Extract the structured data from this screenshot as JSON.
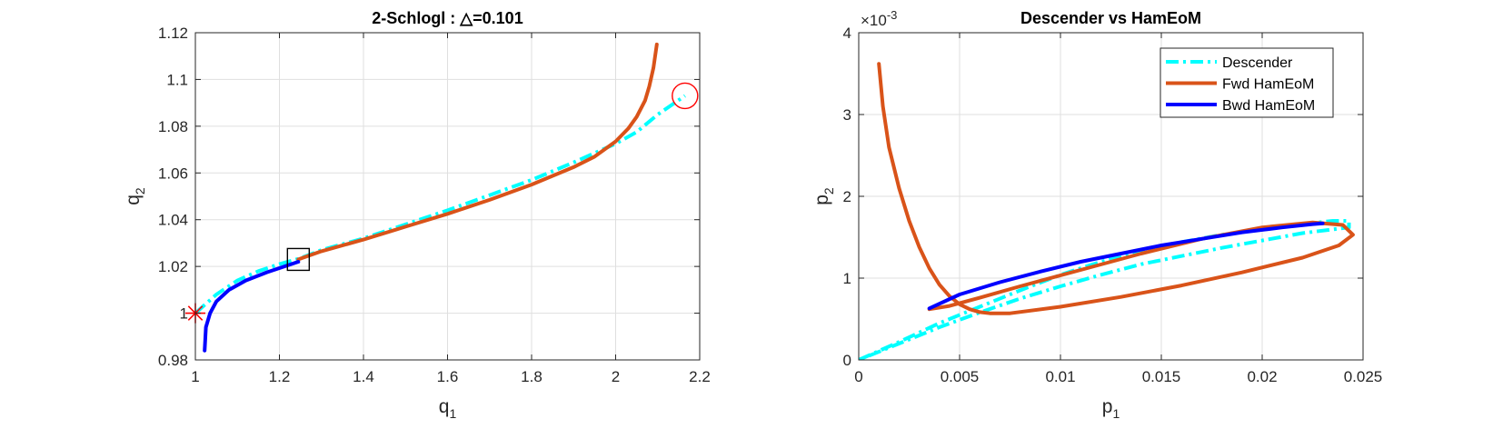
{
  "chart_data": [
    {
      "type": "line",
      "title": "2-Schlogl : △=0.101",
      "xlabel": "q",
      "xlabel_sub": "1",
      "ylabel": "q",
      "ylabel_sub": "2",
      "xlim": [
        1,
        2.2
      ],
      "ylim": [
        0.98,
        1.12
      ],
      "xticks": [
        1,
        1.2,
        1.4,
        1.6,
        1.8,
        2,
        2.2
      ],
      "xtick_labels": [
        "1",
        "1.2",
        "1.4",
        "1.6",
        "1.8",
        "2",
        "2.2"
      ],
      "yticks": [
        0.98,
        1,
        1.02,
        1.04,
        1.06,
        1.08,
        1.1,
        1.12
      ],
      "ytick_labels": [
        "0.98",
        "1",
        "1.02",
        "1.04",
        "1.06",
        "1.08",
        "1.1",
        "1.12"
      ],
      "grid": true,
      "series": [
        {
          "color": "#00FFFF",
          "style": "dashdot",
          "points": [
            [
              1.0,
              1.0
            ],
            [
              1.05,
              1.008
            ],
            [
              1.1,
              1.014
            ],
            [
              1.15,
              1.018
            ],
            [
              1.2,
              1.021
            ],
            [
              1.25,
              1.0235
            ],
            [
              1.3,
              1.027
            ],
            [
              1.4,
              1.032
            ],
            [
              1.5,
              1.038
            ],
            [
              1.6,
              1.044
            ],
            [
              1.7,
              1.0505
            ],
            [
              1.8,
              1.057
            ],
            [
              1.9,
              1.0645
            ],
            [
              2.0,
              1.0725
            ],
            [
              2.05,
              1.0775
            ],
            [
              2.1,
              1.085
            ],
            [
              2.165,
              1.093
            ]
          ]
        },
        {
          "color": "#D95319",
          "style": "solid",
          "points": [
            [
              1.245,
              1.023
            ],
            [
              1.3,
              1.0265
            ],
            [
              1.4,
              1.0315
            ],
            [
              1.5,
              1.037
            ],
            [
              1.6,
              1.0425
            ],
            [
              1.7,
              1.0485
            ],
            [
              1.8,
              1.055
            ],
            [
              1.9,
              1.0625
            ],
            [
              1.95,
              1.067
            ],
            [
              2.0,
              1.0735
            ],
            [
              2.03,
              1.079
            ],
            [
              2.05,
              1.084
            ],
            [
              2.07,
              1.091
            ],
            [
              2.08,
              1.097
            ],
            [
              2.09,
              1.105
            ],
            [
              2.098,
              1.115
            ]
          ]
        },
        {
          "color": "#0000FF",
          "style": "solid",
          "points": [
            [
              1.022,
              0.984
            ],
            [
              1.025,
              0.994
            ],
            [
              1.035,
              1.0
            ],
            [
              1.05,
              1.005
            ],
            [
              1.08,
              1.01
            ],
            [
              1.12,
              1.014
            ],
            [
              1.17,
              1.0175
            ],
            [
              1.22,
              1.0205
            ],
            [
              1.245,
              1.022
            ]
          ]
        }
      ],
      "markers": [
        {
          "shape": "asterisk",
          "color": "#FF0000",
          "x": 1.0,
          "y": 1.0
        },
        {
          "shape": "square",
          "color": "#000000",
          "x": 1.245,
          "y": 1.023
        },
        {
          "shape": "circle",
          "color": "#FF0000",
          "x": 2.165,
          "y": 1.093
        }
      ]
    },
    {
      "type": "line",
      "title": "Descender vs HamEoM",
      "xlabel": "p",
      "xlabel_sub": "1",
      "ylabel": "p",
      "ylabel_sub": "2",
      "y_exponent_base": "×10",
      "y_exponent": "-3",
      "xlim": [
        0,
        0.025
      ],
      "ylim": [
        0,
        4
      ],
      "xticks": [
        0,
        0.005,
        0.01,
        0.015,
        0.02,
        0.025
      ],
      "xtick_labels": [
        "0",
        "0.005",
        "0.01",
        "0.015",
        "0.02",
        "0.025"
      ],
      "yticks": [
        0,
        1,
        2,
        3,
        4
      ],
      "ytick_labels": [
        "0",
        "1",
        "2",
        "3",
        "4"
      ],
      "grid": true,
      "legend_position": "top-right",
      "legend": [
        {
          "label": "Descender",
          "color": "#00FFFF",
          "style": "dashdot"
        },
        {
          "label": "Fwd HamEoM",
          "color": "#D95319",
          "style": "solid"
        },
        {
          "label": "Bwd HamEoM",
          "color": "#0000FF",
          "style": "solid"
        }
      ],
      "series": [
        {
          "name": "Descender",
          "color": "#00FFFF",
          "style": "dashdot",
          "points": [
            [
              0.0,
              0.0
            ],
            [
              0.002,
              0.22
            ],
            [
              0.004,
              0.45
            ],
            [
              0.006,
              0.65
            ],
            [
              0.008,
              0.85
            ],
            [
              0.01,
              1.04
            ],
            [
              0.012,
              1.2
            ],
            [
              0.014,
              1.33
            ],
            [
              0.016,
              1.44
            ],
            [
              0.018,
              1.53
            ],
            [
              0.02,
              1.6
            ],
            [
              0.022,
              1.66
            ],
            [
              0.0235,
              1.7
            ],
            [
              0.0243,
              1.7
            ],
            [
              0.0243,
              1.62
            ],
            [
              0.022,
              1.55
            ],
            [
              0.02,
              1.46
            ],
            [
              0.018,
              1.37
            ],
            [
              0.016,
              1.27
            ],
            [
              0.014,
              1.17
            ],
            [
              0.012,
              1.04
            ],
            [
              0.01,
              0.9
            ],
            [
              0.008,
              0.75
            ],
            [
              0.006,
              0.58
            ],
            [
              0.004,
              0.4
            ],
            [
              0.002,
              0.2
            ],
            [
              0.0005,
              0.05
            ]
          ]
        },
        {
          "name": "Fwd HamEoM",
          "color": "#D95319",
          "style": "solid",
          "points": [
            [
              0.001,
              3.62
            ],
            [
              0.0012,
              3.1
            ],
            [
              0.0015,
              2.6
            ],
            [
              0.002,
              2.1
            ],
            [
              0.0025,
              1.7
            ],
            [
              0.003,
              1.38
            ],
            [
              0.0035,
              1.12
            ],
            [
              0.004,
              0.92
            ],
            [
              0.0045,
              0.78
            ],
            [
              0.005,
              0.68
            ],
            [
              0.0055,
              0.62
            ],
            [
              0.006,
              0.585
            ],
            [
              0.0065,
              0.57
            ],
            [
              0.0075,
              0.57
            ],
            [
              0.01,
              0.65
            ],
            [
              0.013,
              0.77
            ],
            [
              0.016,
              0.91
            ],
            [
              0.019,
              1.07
            ],
            [
              0.022,
              1.25
            ],
            [
              0.0238,
              1.4
            ],
            [
              0.0245,
              1.53
            ],
            [
              0.024,
              1.65
            ],
            [
              0.0225,
              1.68
            ],
            [
              0.02,
              1.62
            ],
            [
              0.017,
              1.48
            ],
            [
              0.014,
              1.3
            ],
            [
              0.011,
              1.1
            ],
            [
              0.008,
              0.9
            ],
            [
              0.006,
              0.76
            ],
            [
              0.0045,
              0.66
            ],
            [
              0.0035,
              0.62
            ]
          ]
        },
        {
          "name": "Bwd HamEoM",
          "color": "#0000FF",
          "style": "solid",
          "points": [
            [
              0.0035,
              0.63
            ],
            [
              0.005,
              0.8
            ],
            [
              0.007,
              0.95
            ],
            [
              0.009,
              1.08
            ],
            [
              0.011,
              1.2
            ],
            [
              0.013,
              1.3
            ],
            [
              0.015,
              1.4
            ],
            [
              0.017,
              1.48
            ],
            [
              0.019,
              1.56
            ],
            [
              0.021,
              1.62
            ],
            [
              0.0225,
              1.66
            ],
            [
              0.023,
              1.67
            ]
          ]
        }
      ]
    }
  ]
}
